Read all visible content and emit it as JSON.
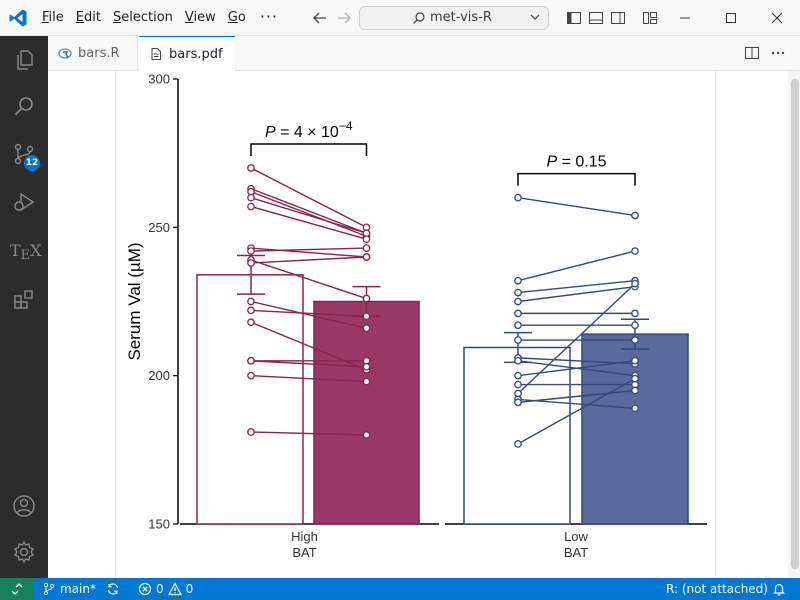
{
  "menu": {
    "items": [
      {
        "pre": "",
        "accel": "F",
        "post": "ile"
      },
      {
        "pre": "",
        "accel": "E",
        "post": "dit"
      },
      {
        "pre": "",
        "accel": "S",
        "post": "election"
      },
      {
        "pre": "",
        "accel": "V",
        "post": "iew"
      },
      {
        "pre": "",
        "accel": "G",
        "post": "o"
      }
    ],
    "more": "···"
  },
  "command_center": {
    "label": "met-vis-R"
  },
  "activity": {
    "scm_badge": "12",
    "tex_label": "TEX"
  },
  "tabs": [
    {
      "label": "bars.R",
      "active": false
    },
    {
      "label": "bars.pdf",
      "active": true
    }
  ],
  "status": {
    "branch": "main*",
    "errors": "0",
    "warnings": "0",
    "r_session": "R: (not attached)"
  },
  "colors": {
    "high": "#8b2350",
    "high_fill": "#993867",
    "low": "#35497a",
    "low_fill": "#5b6a9e",
    "accent": "#0078d4"
  },
  "chart_data": {
    "type": "bar",
    "ylabel": "Serum Val (µM)",
    "ylim": [
      150,
      300
    ],
    "yticks": [
      150,
      200,
      250,
      300
    ],
    "groups": [
      {
        "name": "High\nBAT",
        "label_line1": "High",
        "label_line2": "BAT",
        "color": "#8b2350",
        "fill": "#993867",
        "bars": [
          {
            "condition": "first",
            "value": 234,
            "sem": 6.5,
            "filled": false
          },
          {
            "condition": "second",
            "value": 225,
            "sem": 5,
            "filled": true
          }
        ],
        "pairs": [
          [
            270,
            250
          ],
          [
            263,
            248
          ],
          [
            262,
            247
          ],
          [
            260,
            248
          ],
          [
            257,
            246
          ],
          [
            243,
            240
          ],
          [
            242,
            243
          ],
          [
            239,
            226
          ],
          [
            238,
            240
          ],
          [
            225,
            216
          ],
          [
            222,
            220
          ],
          [
            218,
            202
          ],
          [
            205,
            205
          ],
          [
            205,
            203
          ],
          [
            200,
            198
          ],
          [
            181,
            180
          ]
        ],
        "pvalue": {
          "prefix": "P",
          "text": " = 4 × 10",
          "sup": "−4"
        }
      },
      {
        "name": "Low\nBAT",
        "label_line1": "Low",
        "label_line2": "BAT",
        "color": "#35497a",
        "fill": "#5b6a9e",
        "bars": [
          {
            "condition": "first",
            "value": 209.5,
            "sem": 5,
            "filled": false
          },
          {
            "condition": "second",
            "value": 214,
            "sem": 5,
            "filled": true
          }
        ],
        "pairs": [
          [
            260,
            254
          ],
          [
            232,
            242
          ],
          [
            228,
            232
          ],
          [
            225,
            230
          ],
          [
            221,
            221
          ],
          [
            217,
            217
          ],
          [
            212,
            212
          ],
          [
            206,
            204
          ],
          [
            205,
            200
          ],
          [
            200,
            205
          ],
          [
            197,
            197
          ],
          [
            194,
            231
          ],
          [
            192,
            189
          ],
          [
            191,
            195
          ],
          [
            177,
            199
          ]
        ],
        "pvalue": {
          "prefix": "P",
          "text": " = 0.15",
          "sup": ""
        }
      }
    ]
  }
}
